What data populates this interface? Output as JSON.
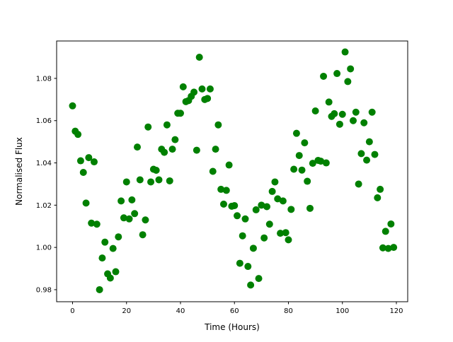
{
  "chart_data": {
    "type": "scatter",
    "title": "",
    "xlabel": "Time (Hours)",
    "ylabel": "Normalised Flux",
    "xlim": [
      -5.9,
      124.2
    ],
    "ylim": [
      0.9743,
      1.0977
    ],
    "xticks": [
      0,
      20,
      40,
      60,
      80,
      100,
      120
    ],
    "yticks": [
      0.98,
      1.0,
      1.02,
      1.04,
      1.06,
      1.08
    ],
    "xtick_labels": [
      "0",
      "20",
      "40",
      "60",
      "80",
      "100",
      "120"
    ],
    "ytick_labels": [
      "0.98",
      "1.00",
      "1.02",
      "1.04",
      "1.06",
      "1.08"
    ],
    "grid": false,
    "marker_color": "#008000",
    "y": [
      1.067,
      1.055,
      1.0535,
      1.041,
      1.0355,
      1.021,
      1.0425,
      1.0115,
      1.0405,
      1.011,
      0.98,
      0.995,
      1.0025,
      0.9875,
      0.9855,
      0.9995,
      0.9885,
      1.005,
      1.022,
      1.014,
      1.031,
      1.0135,
      1.0225,
      1.016,
      1.0475,
      1.032,
      1.006,
      1.013,
      1.057,
      1.031,
      1.037,
      1.0365,
      1.032,
      1.0465,
      1.045,
      1.058,
      1.0315,
      1.0465,
      1.051,
      1.0635,
      1.0635,
      1.076,
      1.069,
      1.0695,
      1.0715,
      1.0735,
      1.046,
      1.09,
      1.075,
      1.07,
      1.0705,
      1.075,
      1.036,
      1.0465,
      1.058,
      1.0275,
      1.0205,
      1.027,
      1.039,
      1.0195,
      1.0198,
      1.015,
      0.9925,
      1.0055,
      1.0135,
      0.991,
      0.9822,
      0.9996,
      1.0178,
      0.9853,
      1.02,
      1.0045,
      1.0193,
      1.011,
      1.0265,
      1.031,
      1.023,
      1.0067,
      1.022,
      1.007,
      1.0036,
      1.018,
      1.037,
      1.054,
      1.0435,
      1.0366,
      1.0495,
      1.0313,
      1.0185,
      1.0398,
      1.0646,
      1.0412,
      1.0408,
      1.081,
      1.04,
      1.0688,
      1.062,
      1.0633,
      1.0823,
      1.0583,
      1.063,
      1.0925,
      1.0785,
      1.0845,
      1.06,
      1.064,
      1.03,
      1.0444,
      1.059,
      1.0413,
      1.05,
      1.064,
      1.044,
      1.0235,
      1.0275,
      0.9998,
      1.0076,
      0.9995,
      1.0111,
      1.0
    ],
    "x_step_hours": 1.0
  }
}
